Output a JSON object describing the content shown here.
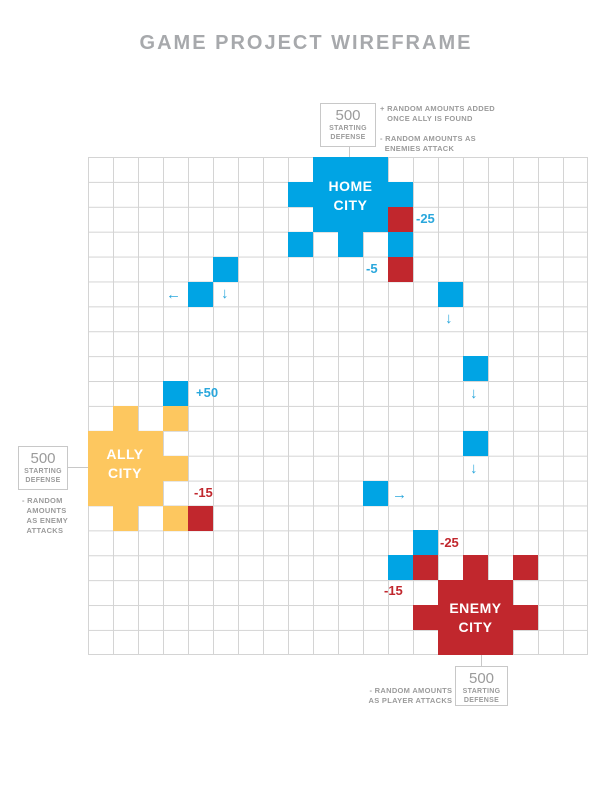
{
  "title": "GAME PROJECT WIREFRAME",
  "colors": {
    "home": "#00a4e4",
    "enemy": "#c1272d",
    "ally": "#fdc75f",
    "delta_blue": "#2aa7dc",
    "delta_red": "#c1272d",
    "grid": "#d4d4d4"
  },
  "cities": {
    "home": {
      "line1": "HOME",
      "line2": "CITY"
    },
    "ally": {
      "line1": "ALLY",
      "line2": "CITY"
    },
    "enemy": {
      "line1": "ENEMY",
      "line2": "CITY"
    }
  },
  "defense": {
    "home": {
      "value": "500",
      "label_1": "STARTING",
      "label_2": "DEFENSE"
    },
    "ally": {
      "value": "500",
      "label_1": "STARTING",
      "label_2": "DEFENSE"
    },
    "enemy": {
      "value": "500",
      "label_1": "STARTING",
      "label_2": "DEFENSE"
    }
  },
  "notes": {
    "home": "+ RANDOM AMOUNTS ADDED\n   ONCE ALLY IS FOUND\n\n- RANDOM AMOUNTS AS\n  ENEMIES ATTACK",
    "ally": "- RANDOM\n  AMOUNTS\n  AS ENEMY\n  ATTACKS",
    "enemy": "- RANDOM AMOUNTS\n  AS PLAYER ATTACKS"
  },
  "deltas": {
    "home_minus_25": "-25",
    "home_minus_5": "-5",
    "ally_plus_50": "+50",
    "ally_minus_15": "-15",
    "enemy_minus_25": "-25",
    "enemy_minus_15": "-15"
  },
  "arrows": {
    "left": "←",
    "down": "↓",
    "right": "→"
  }
}
